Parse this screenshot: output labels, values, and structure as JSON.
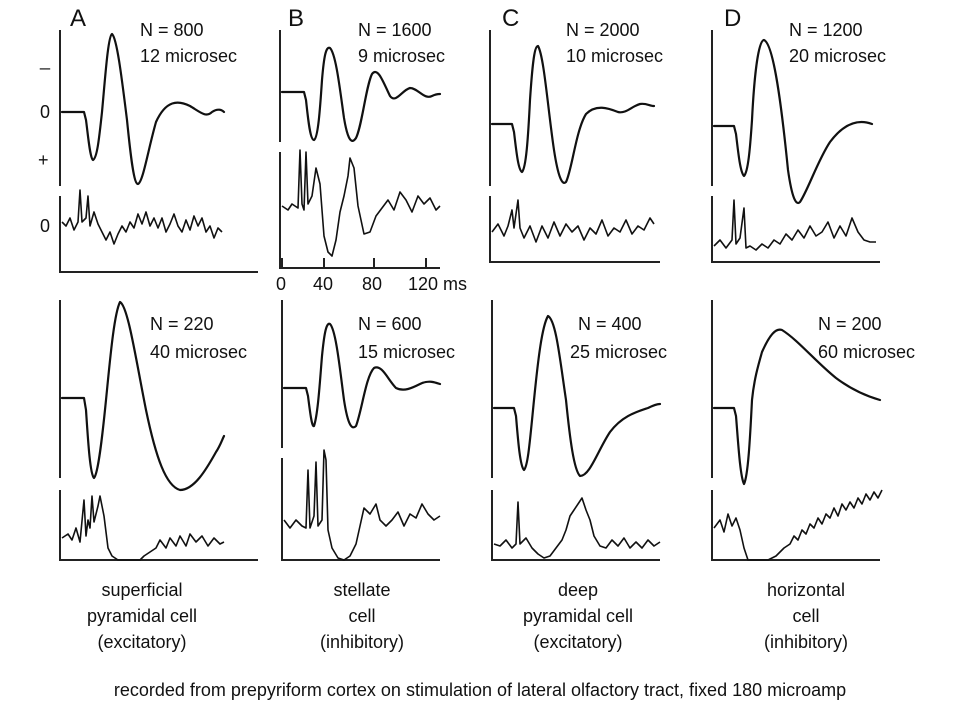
{
  "columns": [
    {
      "letter": "A",
      "top": {
        "n": "N = 800",
        "t": "12 microsec"
      },
      "bottom": {
        "n": "N = 220",
        "t": "40 microsec"
      },
      "label": [
        "superficial",
        "pyramidal cell",
        "(excitatory)"
      ]
    },
    {
      "letter": "B",
      "top": {
        "n": "N = 1600",
        "t": "9 microsec"
      },
      "bottom": {
        "n": "N = 600",
        "t": "15 microsec"
      },
      "label": [
        "stellate",
        "cell",
        "(inhibitory)"
      ]
    },
    {
      "letter": "C",
      "top": {
        "n": "N = 2000",
        "t": "10 microsec"
      },
      "bottom": {
        "n": "N = 400",
        "t": "25 microsec"
      },
      "label": [
        "deep",
        "pyramidal cell",
        "(excitatory)"
      ]
    },
    {
      "letter": "D",
      "top": {
        "n": "N = 1200",
        "t": "20 microsec"
      },
      "bottom": {
        "n": "N = 200",
        "t": "60 microsec"
      },
      "label": [
        "horizontal",
        "cell",
        "(inhibitory)"
      ]
    }
  ],
  "y_axis_marks": {
    "minus": "_",
    "zero_top": "0",
    "plus": "+",
    "zero_bottom": "0"
  },
  "time_axis": {
    "ticks": [
      "0",
      "40",
      "80",
      "120 ms"
    ]
  },
  "footer": "recorded from prepyriform cortex on stimulation of lateral olfactory tract, fixed 180 microamp"
}
